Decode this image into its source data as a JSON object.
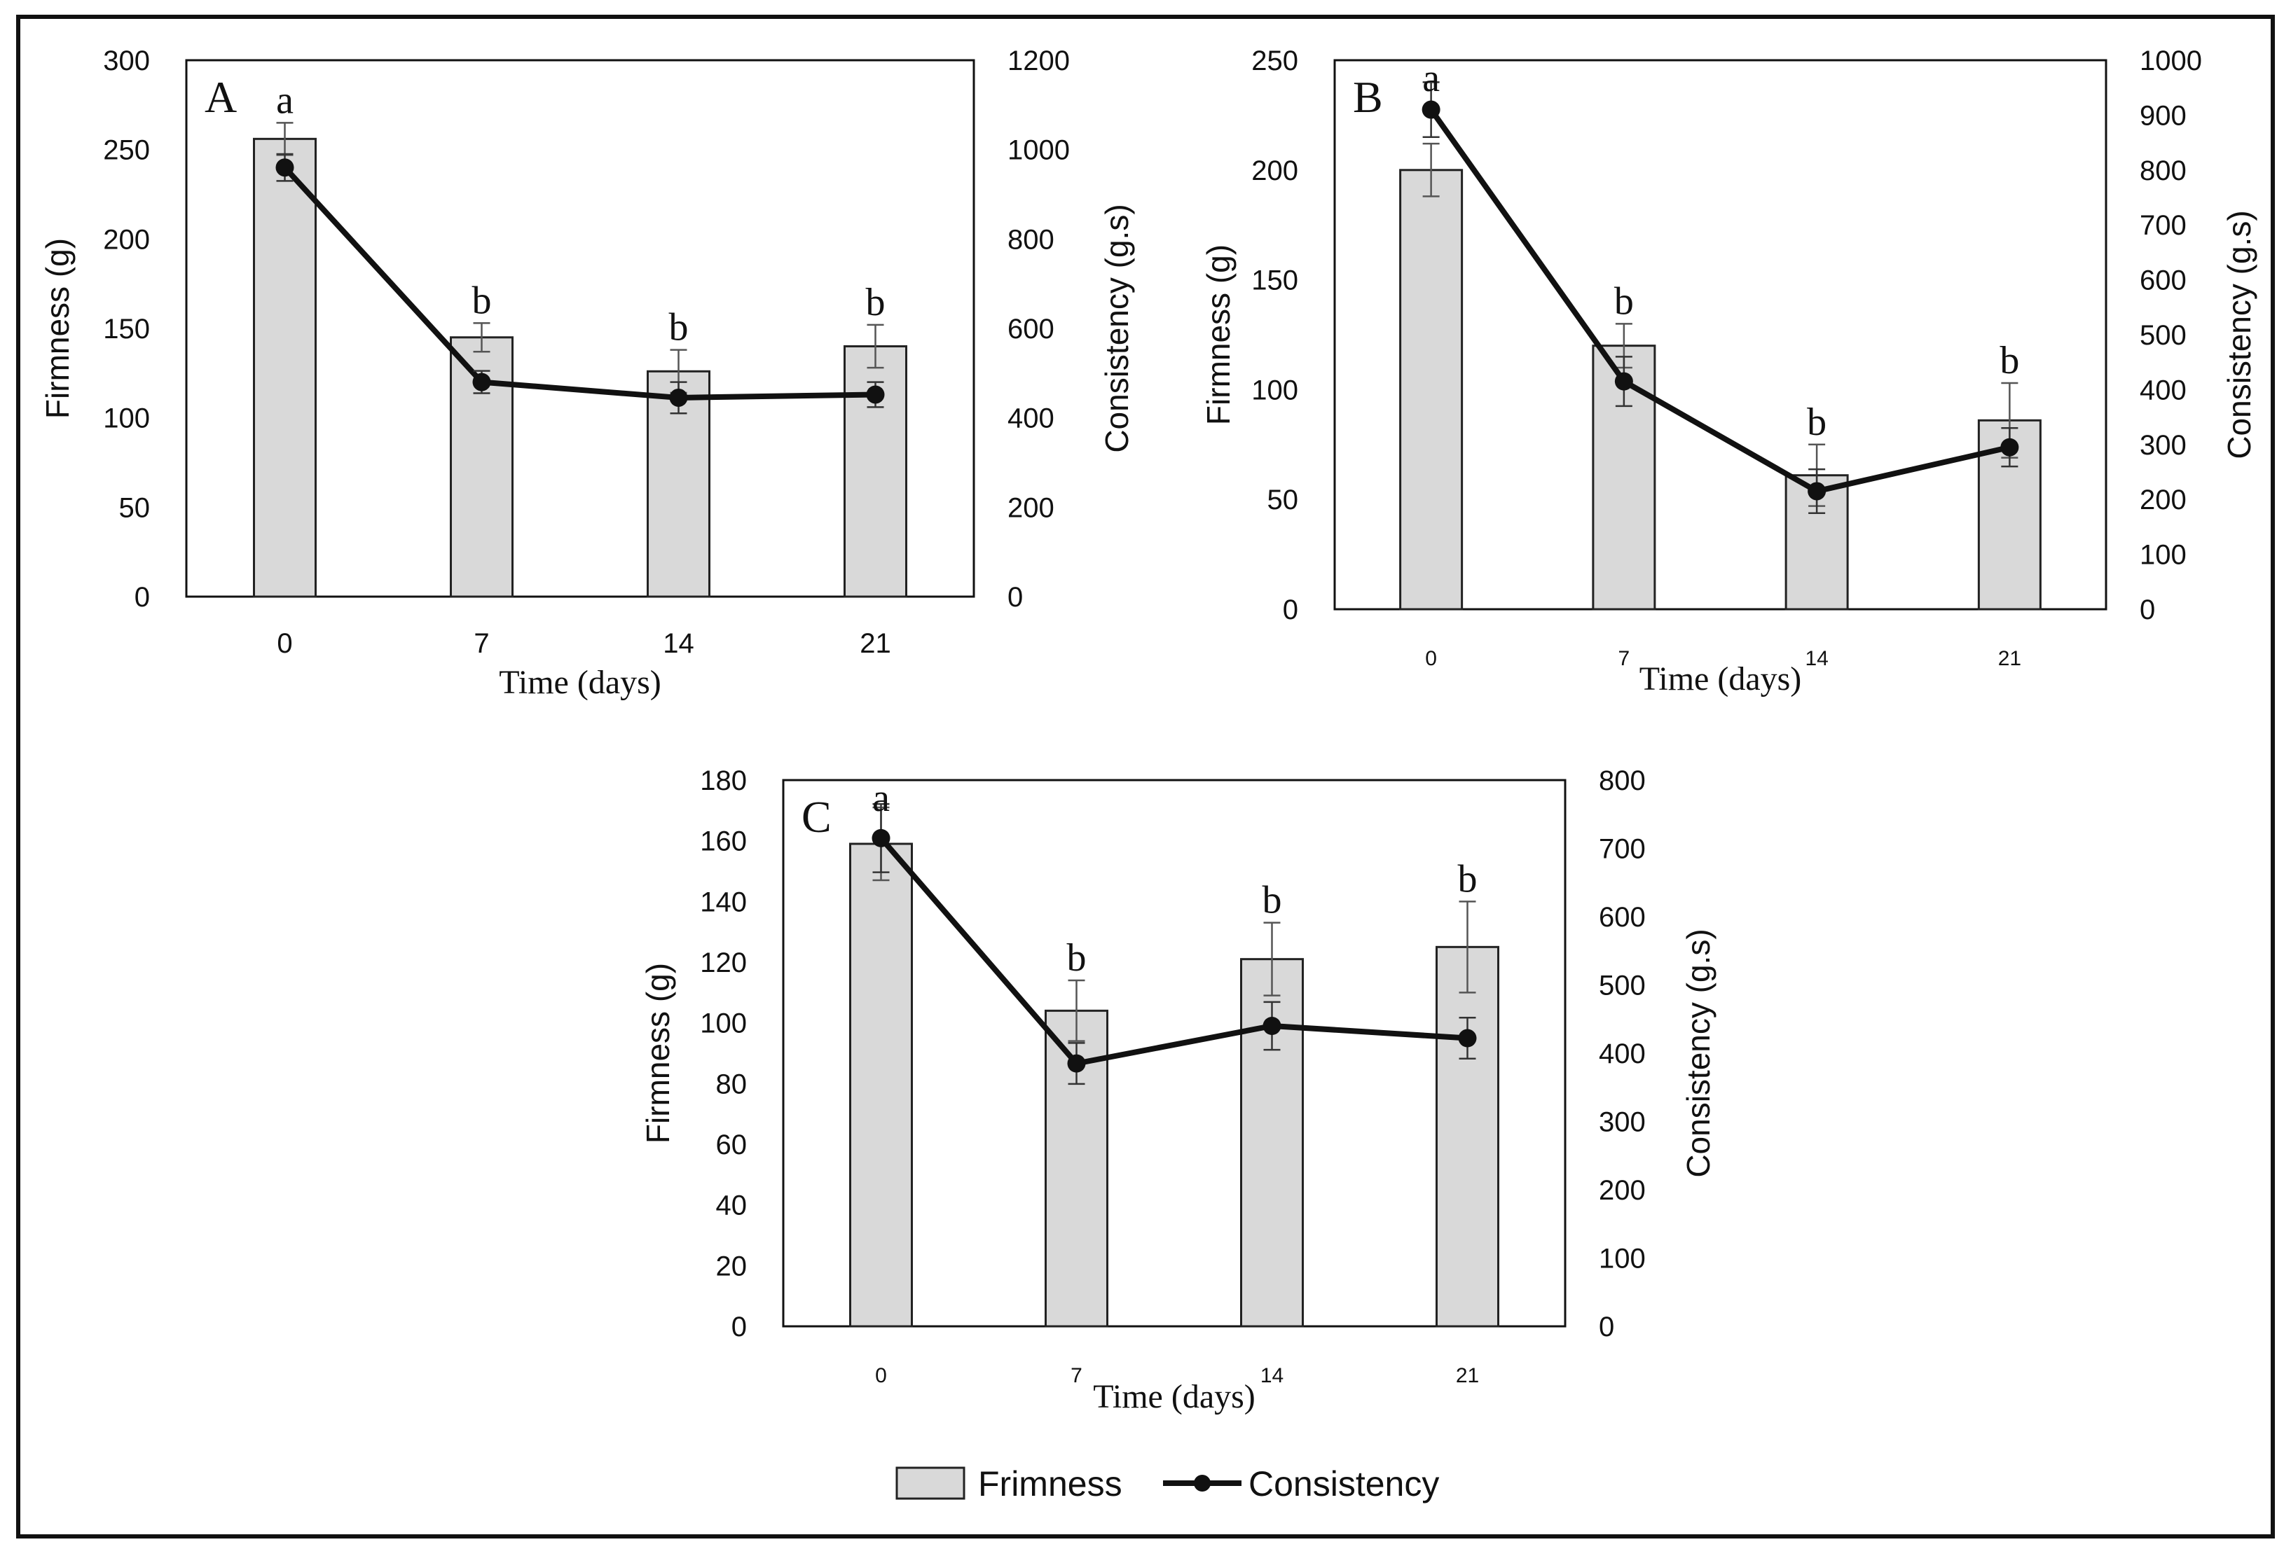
{
  "legend": {
    "bar_label": "Frimness",
    "line_label": "Consistency"
  },
  "colors": {
    "bar_fill": "#d9d9d9",
    "bar_stroke": "#222222",
    "line": "#111111",
    "frame": "#111111"
  },
  "chart_data": [
    {
      "panel": "A",
      "type": "bar",
      "categories": [
        "0",
        "7",
        "14",
        "21"
      ],
      "xlabel": "Time (days)",
      "ylabel": "Firmness (g)",
      "y2label": "Consistency (g.s)",
      "ylim": [
        0,
        300
      ],
      "yticks": [
        0,
        50,
        100,
        150,
        200,
        250,
        300
      ],
      "y2lim": [
        0,
        1200
      ],
      "y2ticks": [
        0,
        200,
        400,
        600,
        800,
        1000,
        1200
      ],
      "series": [
        {
          "name": "Frimness",
          "type": "bar",
          "axis": "left",
          "values": [
            256,
            145,
            126,
            140
          ],
          "errors": [
            9,
            8,
            12,
            12
          ]
        },
        {
          "name": "Consistency",
          "type": "line",
          "axis": "right",
          "values": [
            960,
            480,
            445,
            452
          ],
          "errors": [
            30,
            25,
            35,
            28
          ]
        }
      ],
      "annotations": [
        "a",
        "b",
        "b",
        "b"
      ]
    },
    {
      "panel": "B",
      "type": "bar",
      "categories": [
        "0",
        "7",
        "14",
        "21"
      ],
      "xlabel": "Time (days)",
      "ylabel": "Firmness (g)",
      "y2label": "Consistency (g.s)",
      "ylim": [
        0,
        250
      ],
      "yticks": [
        0,
        50,
        100,
        150,
        200,
        250
      ],
      "y2lim": [
        0,
        1000
      ],
      "y2ticks": [
        0,
        100,
        200,
        300,
        400,
        500,
        600,
        700,
        800,
        900,
        1000
      ],
      "series": [
        {
          "name": "Frimness",
          "type": "bar",
          "axis": "left",
          "values": [
            200,
            120,
            61,
            86
          ],
          "errors": [
            12,
            10,
            14,
            17
          ]
        },
        {
          "name": "Consistency",
          "type": "line",
          "axis": "right",
          "values": [
            910,
            415,
            215,
            295
          ],
          "errors": [
            50,
            45,
            40,
            35
          ]
        }
      ],
      "annotations": [
        "a",
        "b",
        "b",
        "b"
      ]
    },
    {
      "panel": "C",
      "type": "bar",
      "categories": [
        "0",
        "7",
        "14",
        "21"
      ],
      "xlabel": "Time (days)",
      "ylabel": "Firmness (g)",
      "y2label": "Consistency (g.s)",
      "ylim": [
        0,
        180
      ],
      "yticks": [
        0,
        20,
        40,
        60,
        80,
        100,
        120,
        140,
        160,
        180
      ],
      "y2lim": [
        0,
        800
      ],
      "y2ticks": [
        0,
        100,
        200,
        300,
        400,
        500,
        600,
        700,
        800
      ],
      "series": [
        {
          "name": "Frimness",
          "type": "bar",
          "axis": "left",
          "values": [
            159,
            104,
            121,
            125
          ],
          "errors": [
            12,
            10,
            12,
            15
          ]
        },
        {
          "name": "Consistency",
          "type": "line",
          "axis": "right",
          "values": [
            715,
            385,
            440,
            422
          ],
          "errors": [
            50,
            30,
            35,
            30
          ]
        }
      ],
      "annotations": [
        "a",
        "b",
        "b",
        "b"
      ]
    }
  ]
}
